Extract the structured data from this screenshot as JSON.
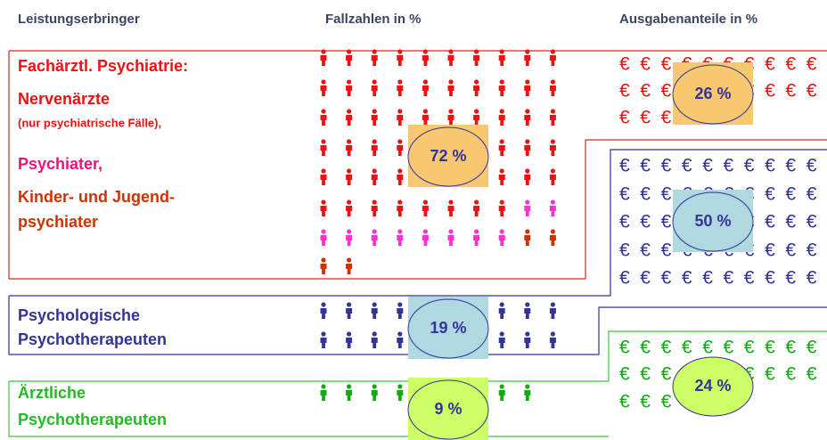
{
  "header": {
    "col1": "Leistungserbringer",
    "col2": "Fallzahlen in %",
    "col3": "Ausgabenanteile in %"
  },
  "euro_symbol": "€",
  "groups": [
    {
      "lines": [
        "Fachärztl. Psychiatrie:",
        "Nervenärzte",
        "(nur psychiatrische Fälle),",
        "Psychiater,",
        "Kinder- und Jugend-",
        "psychiater"
      ],
      "cases": "72 %",
      "spending": "26 %"
    },
    {
      "lines": [
        "Psychologische",
        "Psychotherapeuten"
      ],
      "cases": "19 %",
      "spending": "50 %"
    },
    {
      "lines": [
        "Ärztliche",
        "Psychotherapeuten"
      ],
      "cases": "9 %",
      "spending": "24 %"
    }
  ]
}
